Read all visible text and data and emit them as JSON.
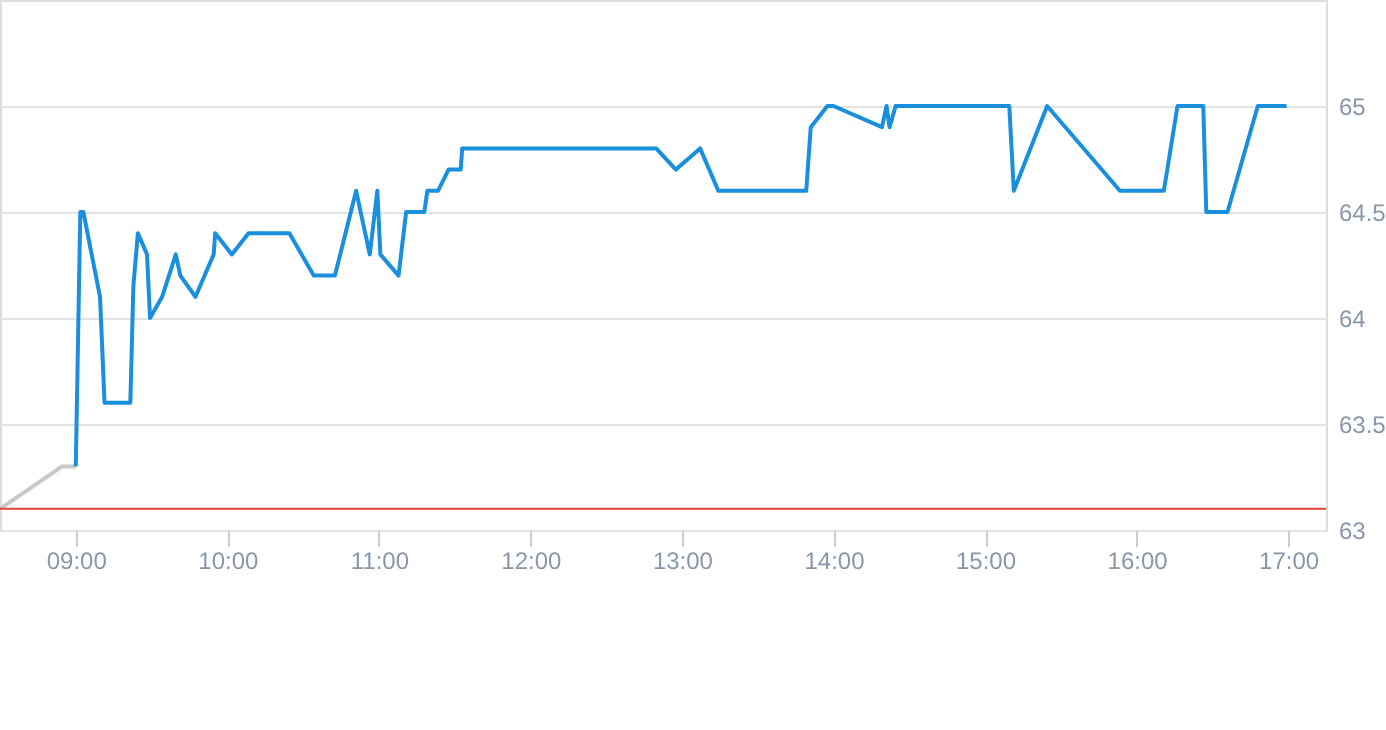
{
  "chart_data": {
    "type": "line",
    "grid": "y",
    "xlim": [
      8.5,
      17.25
    ],
    "ylim": [
      63,
      65.5
    ],
    "xticks": [
      {
        "value": 9,
        "label": "09:00"
      },
      {
        "value": 10,
        "label": "10:00"
      },
      {
        "value": 11,
        "label": "11:00"
      },
      {
        "value": 12,
        "label": "12:00"
      },
      {
        "value": 13,
        "label": "13:00"
      },
      {
        "value": 14,
        "label": "14:00"
      },
      {
        "value": 15,
        "label": "15:00"
      },
      {
        "value": 16,
        "label": "16:00"
      },
      {
        "value": 17,
        "label": "17:00"
      }
    ],
    "yticks": [
      63,
      63.5,
      64,
      64.5,
      65
    ],
    "ref_lines": [
      {
        "axis": "y",
        "value": 63.1,
        "color": "#e0443c"
      }
    ],
    "series": [
      {
        "color": "#c8c8c8",
        "x": [
          8.5,
          8.91,
          9.0
        ],
        "values": [
          63.1,
          63.3,
          63.3
        ]
      },
      {
        "color": "#1a8fdd",
        "x": [
          9.0,
          9.03,
          9.05,
          9.16,
          9.19,
          9.36,
          9.38,
          9.41,
          9.47,
          9.49,
          9.57,
          9.66,
          9.69,
          9.79,
          9.91,
          9.92,
          10.03,
          10.14,
          10.41,
          10.57,
          10.71,
          10.85,
          10.94,
          10.99,
          11.01,
          11.13,
          11.18,
          11.3,
          11.32,
          11.39,
          11.46,
          11.54,
          11.55,
          12.83,
          12.96,
          13.12,
          13.24,
          13.82,
          13.85,
          13.96,
          14.0,
          14.32,
          14.35,
          14.37,
          14.41,
          15.16,
          15.19,
          15.41,
          15.89,
          16.18,
          16.27,
          16.44,
          16.46,
          16.6,
          16.8,
          16.99
        ],
        "values": [
          63.3,
          64.5,
          64.5,
          64.1,
          63.6,
          63.6,
          64.15,
          64.4,
          64.3,
          64.0,
          64.1,
          64.3,
          64.2,
          64.1,
          64.3,
          64.4,
          64.3,
          64.4,
          64.4,
          64.2,
          64.2,
          64.6,
          64.3,
          64.6,
          64.3,
          64.2,
          64.5,
          64.5,
          64.6,
          64.6,
          64.7,
          64.7,
          64.8,
          64.8,
          64.7,
          64.8,
          64.6,
          64.6,
          64.9,
          65.0,
          65.0,
          64.9,
          65.0,
          64.9,
          65.0,
          65.0,
          64.6,
          65.0,
          64.6,
          64.6,
          65.0,
          65.0,
          64.5,
          64.5,
          65.0,
          65.0
        ]
      }
    ]
  }
}
